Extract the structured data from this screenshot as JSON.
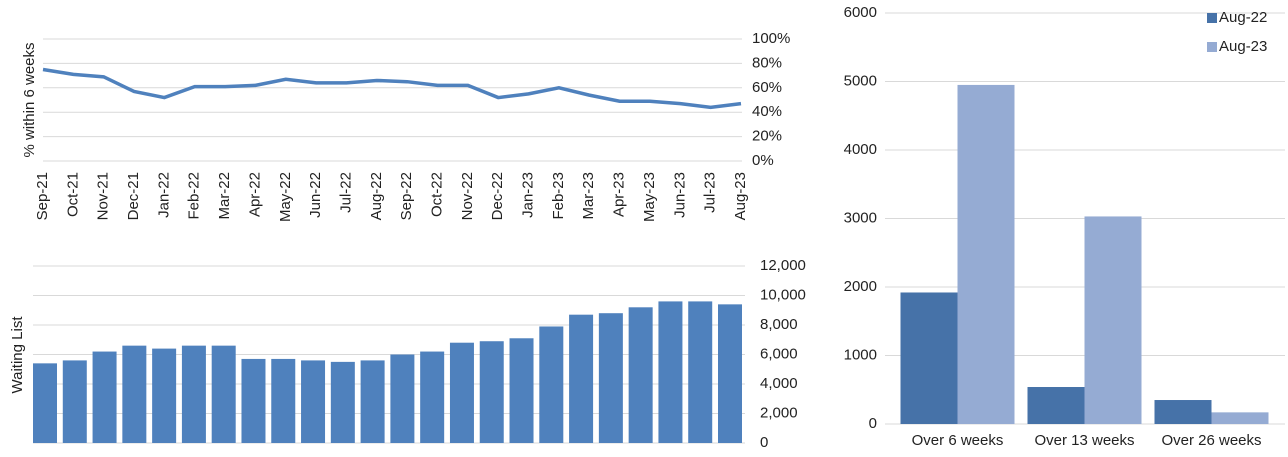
{
  "chart_data": [
    {
      "type": "line",
      "y_label": "% within 6 weeks",
      "categories": [
        "Sep-21",
        "Oct-21",
        "Nov-21",
        "Dec-21",
        "Jan-22",
        "Feb-22",
        "Mar-22",
        "Apr-22",
        "May-22",
        "Jun-22",
        "Jul-22",
        "Aug-22",
        "Sep-22",
        "Oct-22",
        "Nov-22",
        "Dec-22",
        "Jan-23",
        "Feb-23",
        "Mar-23",
        "Apr-23",
        "May-23",
        "Jun-23",
        "Jul-23",
        "Aug-23"
      ],
      "values": [
        75,
        71,
        69,
        57,
        52,
        61,
        61,
        62,
        67,
        64,
        64,
        66,
        65,
        62,
        62,
        52,
        55,
        60,
        54,
        49,
        49,
        47,
        44,
        47
      ],
      "color": "#4f81bd",
      "ylim": [
        0,
        100
      ],
      "yticks": [
        {
          "value": 0,
          "label": "0%"
        },
        {
          "value": 20,
          "label": "20%"
        },
        {
          "value": 40,
          "label": "40%"
        },
        {
          "value": 60,
          "label": "60%"
        },
        {
          "value": 80,
          "label": "80%"
        },
        {
          "value": 100,
          "label": "100%"
        }
      ],
      "grid": true
    },
    {
      "type": "bar",
      "y_label": "Waiting List",
      "values": [
        5400,
        5600,
        6200,
        6600,
        6400,
        6600,
        6600,
        5700,
        5700,
        5600,
        5500,
        5600,
        6000,
        6200,
        6800,
        6900,
        7100,
        7900,
        8700,
        8800,
        9200,
        9600,
        9600,
        9400
      ],
      "color": "#4f81bd",
      "ylim": [
        0,
        12000
      ],
      "yticks": [
        0,
        {
          "value": 2000,
          "label": "2,000"
        },
        {
          "value": 4000,
          "label": "4,000"
        },
        {
          "value": 6000,
          "label": "6,000"
        },
        {
          "value": 8000,
          "label": "8,000"
        },
        {
          "value": 10000,
          "label": "10,000"
        },
        {
          "value": 12000,
          "label": "12,000"
        }
      ],
      "grid": true
    },
    {
      "type": "grouped_bar",
      "categories": [
        "Over 6 weeks",
        "Over 13 weeks",
        "Over 26 weeks"
      ],
      "series": [
        {
          "name": "Aug-22",
          "color": "#4672a8",
          "values": [
            1920,
            540,
            350
          ]
        },
        {
          "name": "Aug-23",
          "color": "#95abd3",
          "values": [
            4950,
            3030,
            170
          ]
        }
      ],
      "ylim": [
        0,
        6000
      ],
      "yticks": [
        0,
        1000,
        2000,
        3000,
        4000,
        5000,
        6000
      ],
      "grid": true,
      "legend": "top-right"
    }
  ]
}
